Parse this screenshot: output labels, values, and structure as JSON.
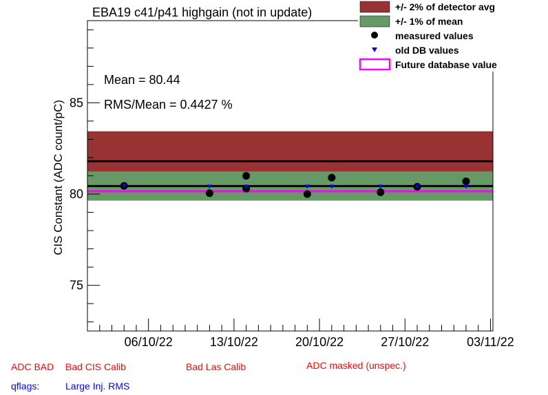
{
  "chart_data": {
    "type": "scatter",
    "title": "EBA19 c41/p41 highgain (not in update)",
    "ylabel": "CIS Constant (ADC count/pC)",
    "xlabel": "",
    "xlim": [
      "2022-10-01",
      "2022-11-03"
    ],
    "ylim": [
      72.5,
      89.5
    ],
    "yticks": [
      75,
      80,
      85
    ],
    "xticks": [
      "06/10/22",
      "13/10/22",
      "20/10/22",
      "27/10/22",
      "03/11/22"
    ],
    "xtick_dates": [
      "2022-10-06",
      "2022-10-13",
      "2022-10-20",
      "2022-10-27",
      "2022-11-03"
    ],
    "mean": 80.44,
    "detector_avg": 81.8,
    "future_db_value": 80.15,
    "band_2pct": [
      80.16,
      83.44
    ],
    "band_1pct": [
      79.64,
      81.24
    ],
    "stats": {
      "mean_label": "Mean = 80.44",
      "rms_label": "RMS/Mean = 0.4427 %"
    },
    "series": [
      {
        "name": "measured values",
        "points": [
          {
            "x": "2022-10-04",
            "y": 80.45
          },
          {
            "x": "2022-10-11",
            "y": 80.05
          },
          {
            "x": "2022-10-14",
            "y": 81.0
          },
          {
            "x": "2022-10-14",
            "y": 80.3
          },
          {
            "x": "2022-10-19",
            "y": 80.0
          },
          {
            "x": "2022-10-21",
            "y": 80.9
          },
          {
            "x": "2022-10-25",
            "y": 80.1
          },
          {
            "x": "2022-10-28",
            "y": 80.4
          },
          {
            "x": "2022-11-01",
            "y": 80.7
          }
        ]
      },
      {
        "name": "old DB values",
        "points": [
          {
            "x": "2022-10-04",
            "y": 80.45
          },
          {
            "x": "2022-10-11",
            "y": 80.4
          },
          {
            "x": "2022-10-14",
            "y": 80.4
          },
          {
            "x": "2022-10-19",
            "y": 80.4
          },
          {
            "x": "2022-10-21",
            "y": 80.4
          },
          {
            "x": "2022-10-25",
            "y": 80.4
          },
          {
            "x": "2022-10-28",
            "y": 80.4
          },
          {
            "x": "2022-11-01",
            "y": 80.4
          }
        ]
      }
    ],
    "legend": [
      {
        "label": "+/- 2% of detector avg",
        "color": "#993333"
      },
      {
        "label": "+/- 1% of mean",
        "color": "#669966"
      },
      {
        "label": "measured values",
        "color": "#000000"
      },
      {
        "label": "old DB values",
        "color": "#0000ff"
      },
      {
        "label": "Future database value",
        "color": "#ff00ff"
      }
    ],
    "legend_placement": "top-right"
  },
  "flags": {
    "adc_bad": "ADC BAD",
    "bad_cis": "Bad CIS Calib",
    "bad_las": "Bad Las Calib",
    "adc_masked": "ADC masked (unspec.)",
    "qflags": "qflags:",
    "large_inj": "Large Inj. RMS"
  },
  "colors": {
    "band_2pct": "#993333",
    "band_1pct": "#669966",
    "future": "#ff00ff",
    "old_db": "#0000ff",
    "flag_red": "#ff0000",
    "flag_blue": "#0000ff"
  }
}
